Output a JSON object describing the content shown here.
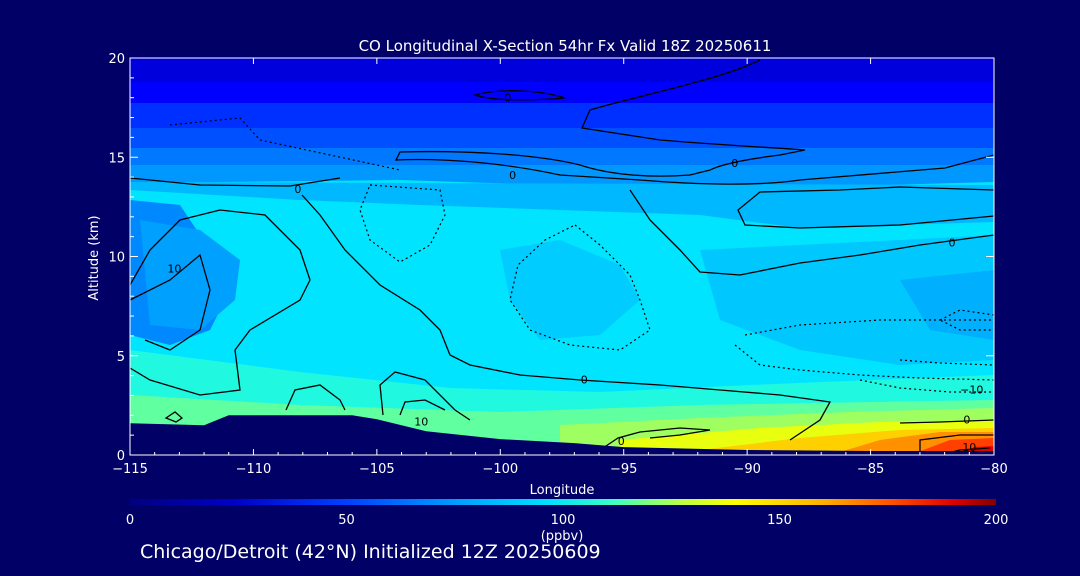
{
  "chart_data": {
    "type": "heatmap",
    "title": "CO Longitudinal X-Section 54hr  Fx Valid 18Z 20250611",
    "xlabel": "Longitude",
    "ylabel": "Altitude (km)",
    "xlim": [
      -115,
      -80
    ],
    "ylim": [
      0,
      20
    ],
    "xticks": [
      -115,
      -110,
      -105,
      -100,
      -95,
      -90,
      -85,
      -80
    ],
    "xtick_labels": [
      "−115",
      "−110",
      "−105",
      "−100",
      "−95",
      "−90",
      "−85",
      "−80"
    ],
    "yticks": [
      0,
      5,
      10,
      15,
      20
    ],
    "ytick_labels": [
      "0",
      "5",
      "10",
      "15",
      "20"
    ],
    "colorbar": {
      "min": 0,
      "max": 200,
      "ticks": [
        "0",
        "50",
        "100",
        "150",
        "200"
      ],
      "units": "(ppbv)"
    },
    "terrain_km": [
      [
        -115,
        1.6
      ],
      [
        -112,
        1.5
      ],
      [
        -111,
        2.0
      ],
      [
        -108,
        2.0
      ],
      [
        -106,
        2.0
      ],
      [
        -105,
        1.8
      ],
      [
        -103,
        1.2
      ],
      [
        -100,
        0.8
      ],
      [
        -97,
        0.6
      ],
      [
        -95,
        0.4
      ],
      [
        -90,
        0.25
      ],
      [
        -85,
        0.2
      ],
      [
        -80,
        0.2
      ]
    ],
    "contour_labels": [
      {
        "text": "0",
        "lon": -99.7,
        "alt": 18.0
      },
      {
        "text": "0",
        "lon": -90.5,
        "alt": 14.7
      },
      {
        "text": "0",
        "lon": -99.5,
        "alt": 14.1
      },
      {
        "text": "0",
        "lon": -108.2,
        "alt": 13.4
      },
      {
        "text": "0",
        "lon": -81.7,
        "alt": 10.7
      },
      {
        "text": "10",
        "lon": -113.2,
        "alt": 9.4
      },
      {
        "text": "0",
        "lon": -96.6,
        "alt": 3.8
      },
      {
        "text": "10",
        "lon": -103.2,
        "alt": 1.7
      },
      {
        "text": "0",
        "lon": -95.1,
        "alt": 0.7
      },
      {
        "text": "−10",
        "lon": -80.9,
        "alt": 3.3
      },
      {
        "text": "0",
        "lon": -81.1,
        "alt": 1.8
      },
      {
        "text": "10",
        "lon": -81.0,
        "alt": 0.4
      }
    ]
  },
  "footer": "Chicago/Detroit (42°N) Initialized 12Z 20250609",
  "colors": {
    "background": "#000066",
    "colormap": [
      "#000080",
      "#0000c8",
      "#0040ff",
      "#0088ff",
      "#00c8ff",
      "#00e8ff",
      "#40ffc0",
      "#80ff80",
      "#c0ff40",
      "#ffff00",
      "#ffc000",
      "#ff8000",
      "#ff4000",
      "#e00000",
      "#800000"
    ]
  }
}
